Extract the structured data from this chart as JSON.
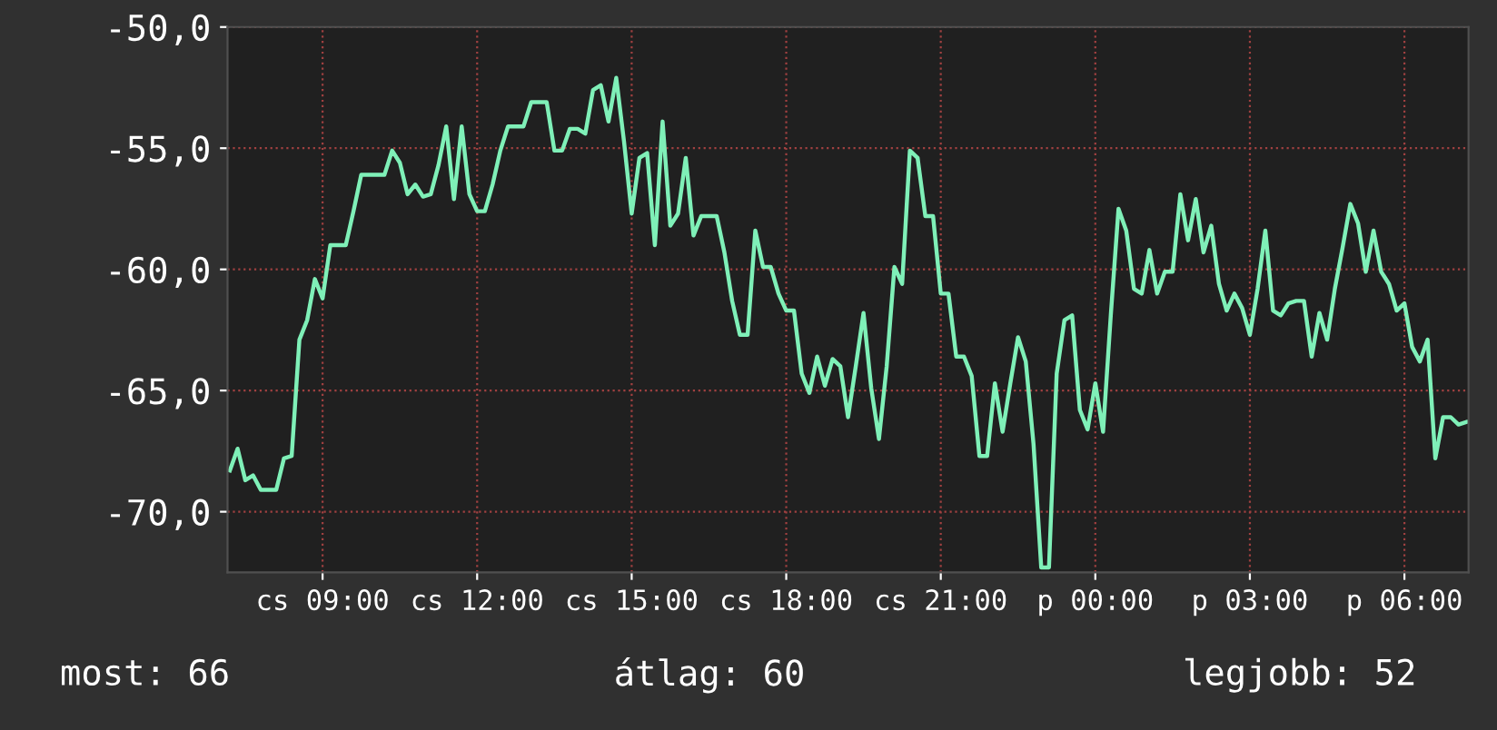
{
  "chart_data": {
    "type": "line",
    "categories": [
      null,
      null,
      null,
      null,
      null,
      null,
      null,
      null,
      null,
      null,
      null,
      null,
      "cs 09:00",
      null,
      null,
      null,
      null,
      null,
      null,
      null,
      null,
      null,
      null,
      null,
      null,
      null,
      null,
      null,
      null,
      null,
      null,
      null,
      "cs 12:00",
      null,
      null,
      null,
      null,
      null,
      null,
      null,
      null,
      null,
      null,
      null,
      null,
      null,
      null,
      null,
      null,
      null,
      null,
      null,
      "cs 15:00",
      null,
      null,
      null,
      null,
      null,
      null,
      null,
      null,
      null,
      null,
      null,
      null,
      null,
      null,
      null,
      null,
      null,
      null,
      null,
      "cs 18:00",
      null,
      null,
      null,
      null,
      null,
      null,
      null,
      null,
      null,
      null,
      null,
      null,
      null,
      null,
      null,
      null,
      null,
      null,
      null,
      "cs 21:00",
      null,
      null,
      null,
      null,
      null,
      null,
      null,
      null,
      null,
      null,
      null,
      null,
      null,
      null,
      null,
      null,
      null,
      null,
      null,
      "p 00:00",
      null,
      null,
      null,
      null,
      null,
      null,
      null,
      null,
      null,
      null,
      null,
      null,
      null,
      null,
      null,
      null,
      null,
      null,
      null,
      "p 03:00",
      null,
      null,
      null,
      null,
      null,
      null,
      null,
      null,
      null,
      null,
      null,
      null,
      null,
      null,
      null,
      null,
      null,
      null,
      null,
      "p 06:00",
      null,
      null,
      null,
      null,
      null,
      null,
      null,
      null
    ],
    "series": [
      {
        "color": "#7ff0b8",
        "values": [
          -68.3,
          -67.4,
          -68.7,
          -68.5,
          -69.1,
          -69.1,
          -69.1,
          -67.8,
          -67.7,
          -62.9,
          -62.1,
          -60.4,
          -61.2,
          -59.0,
          -59.0,
          -59.0,
          -57.6,
          -56.1,
          -56.1,
          -56.1,
          -56.1,
          -55.1,
          -55.6,
          -56.9,
          -56.5,
          -57.0,
          -56.9,
          -55.7,
          -54.1,
          -57.1,
          -54.1,
          -56.9,
          -57.6,
          -57.6,
          -56.5,
          -55.1,
          -54.1,
          -54.1,
          -54.1,
          -53.1,
          -53.1,
          -53.1,
          -55.1,
          -55.1,
          -54.2,
          -54.2,
          -54.4,
          -52.6,
          -52.4,
          -53.9,
          -52.1,
          -54.7,
          -57.7,
          -55.4,
          -55.2,
          -59.0,
          -53.9,
          -58.2,
          -57.7,
          -55.4,
          -58.6,
          -57.8,
          -57.8,
          -57.8,
          -59.3,
          -61.3,
          -62.7,
          -62.7,
          -58.4,
          -59.9,
          -59.9,
          -61.0,
          -61.7,
          -61.7,
          -64.3,
          -65.1,
          -63.6,
          -64.8,
          -63.7,
          -64.0,
          -66.1,
          -64.0,
          -61.8,
          -64.9,
          -67.0,
          -64.0,
          -59.9,
          -60.6,
          -55.1,
          -55.4,
          -57.8,
          -57.8,
          -61.0,
          -61.0,
          -63.6,
          -63.6,
          -64.4,
          -67.7,
          -67.7,
          -64.7,
          -66.7,
          -64.7,
          -62.8,
          -63.8,
          -67.2,
          -72.3,
          -72.3,
          -64.3,
          -62.1,
          -61.9,
          -65.8,
          -66.6,
          -64.7,
          -66.7,
          -61.9,
          -57.5,
          -58.4,
          -60.8,
          -61.0,
          -59.2,
          -61.0,
          -60.1,
          -60.1,
          -56.9,
          -58.8,
          -57.1,
          -59.3,
          -58.2,
          -60.6,
          -61.7,
          -61.0,
          -61.6,
          -62.7,
          -60.8,
          -58.4,
          -61.7,
          -61.9,
          -61.4,
          -61.3,
          -61.3,
          -63.6,
          -61.8,
          -62.9,
          -60.8,
          -59.1,
          -57.3,
          -58.1,
          -60.1,
          -58.4,
          -60.1,
          -60.6,
          -61.7,
          -61.4,
          -63.2,
          -63.8,
          -62.9,
          -67.8,
          -66.1,
          -66.1,
          -66.4,
          -66.3
        ]
      }
    ],
    "ylim": [
      -72.5,
      -50
    ],
    "yticks": [
      {
        "value": -50,
        "label": "-50,0"
      },
      {
        "value": -55,
        "label": "-55,0"
      },
      {
        "value": -60,
        "label": "-60,0"
      },
      {
        "value": -65,
        "label": "-65,0"
      },
      {
        "value": -70,
        "label": "-70,0"
      }
    ],
    "grid": true,
    "annotations": [
      "most: 66",
      "átlag: 60",
      "legjobb: 52"
    ]
  }
}
